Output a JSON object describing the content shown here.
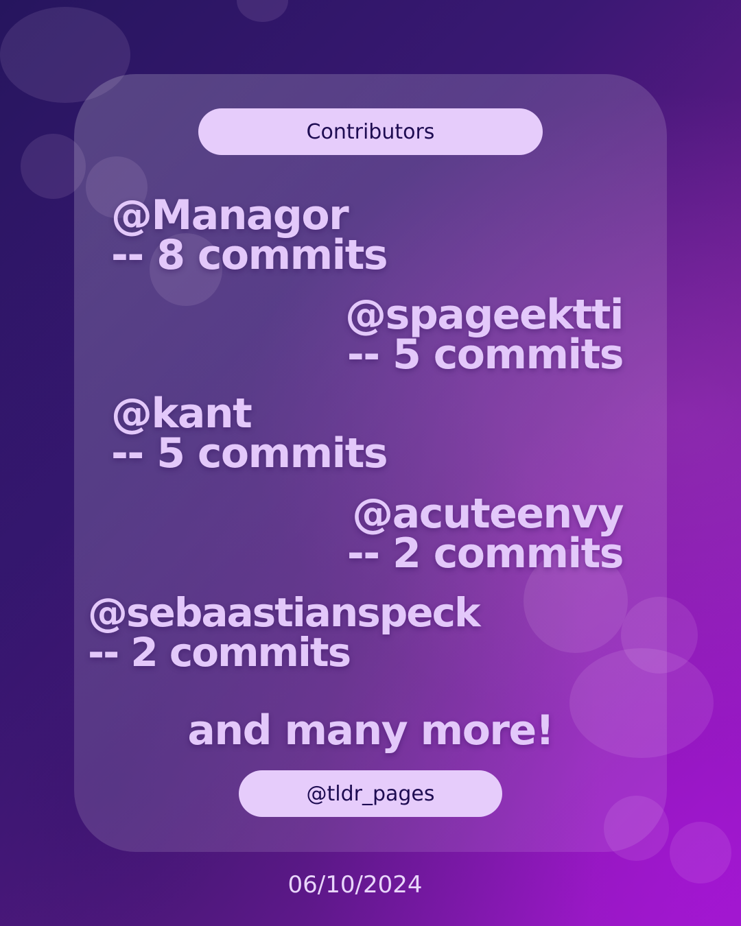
{
  "header": {
    "title": "Contributors"
  },
  "contributors": [
    {
      "handle": "@Managor",
      "commits": "-- 8 commits",
      "align": "left"
    },
    {
      "handle": "@spageektti",
      "commits": "-- 5 commits",
      "align": "right"
    },
    {
      "handle": "@kant",
      "commits": "-- 5 commits",
      "align": "left"
    },
    {
      "handle": "@acuteenvy",
      "commits": "-- 2 commits",
      "align": "right"
    },
    {
      "handle": "@sebaastianspeck",
      "commits": "-- 2 commits",
      "align": "left"
    }
  ],
  "footer_note": "and many more!",
  "account_handle": "@tldr_pages",
  "date": "06/10/2024",
  "colors": {
    "text": "#e3c8fa",
    "pill_background": "#e6ccfb",
    "pill_text": "#1e0c52"
  }
}
